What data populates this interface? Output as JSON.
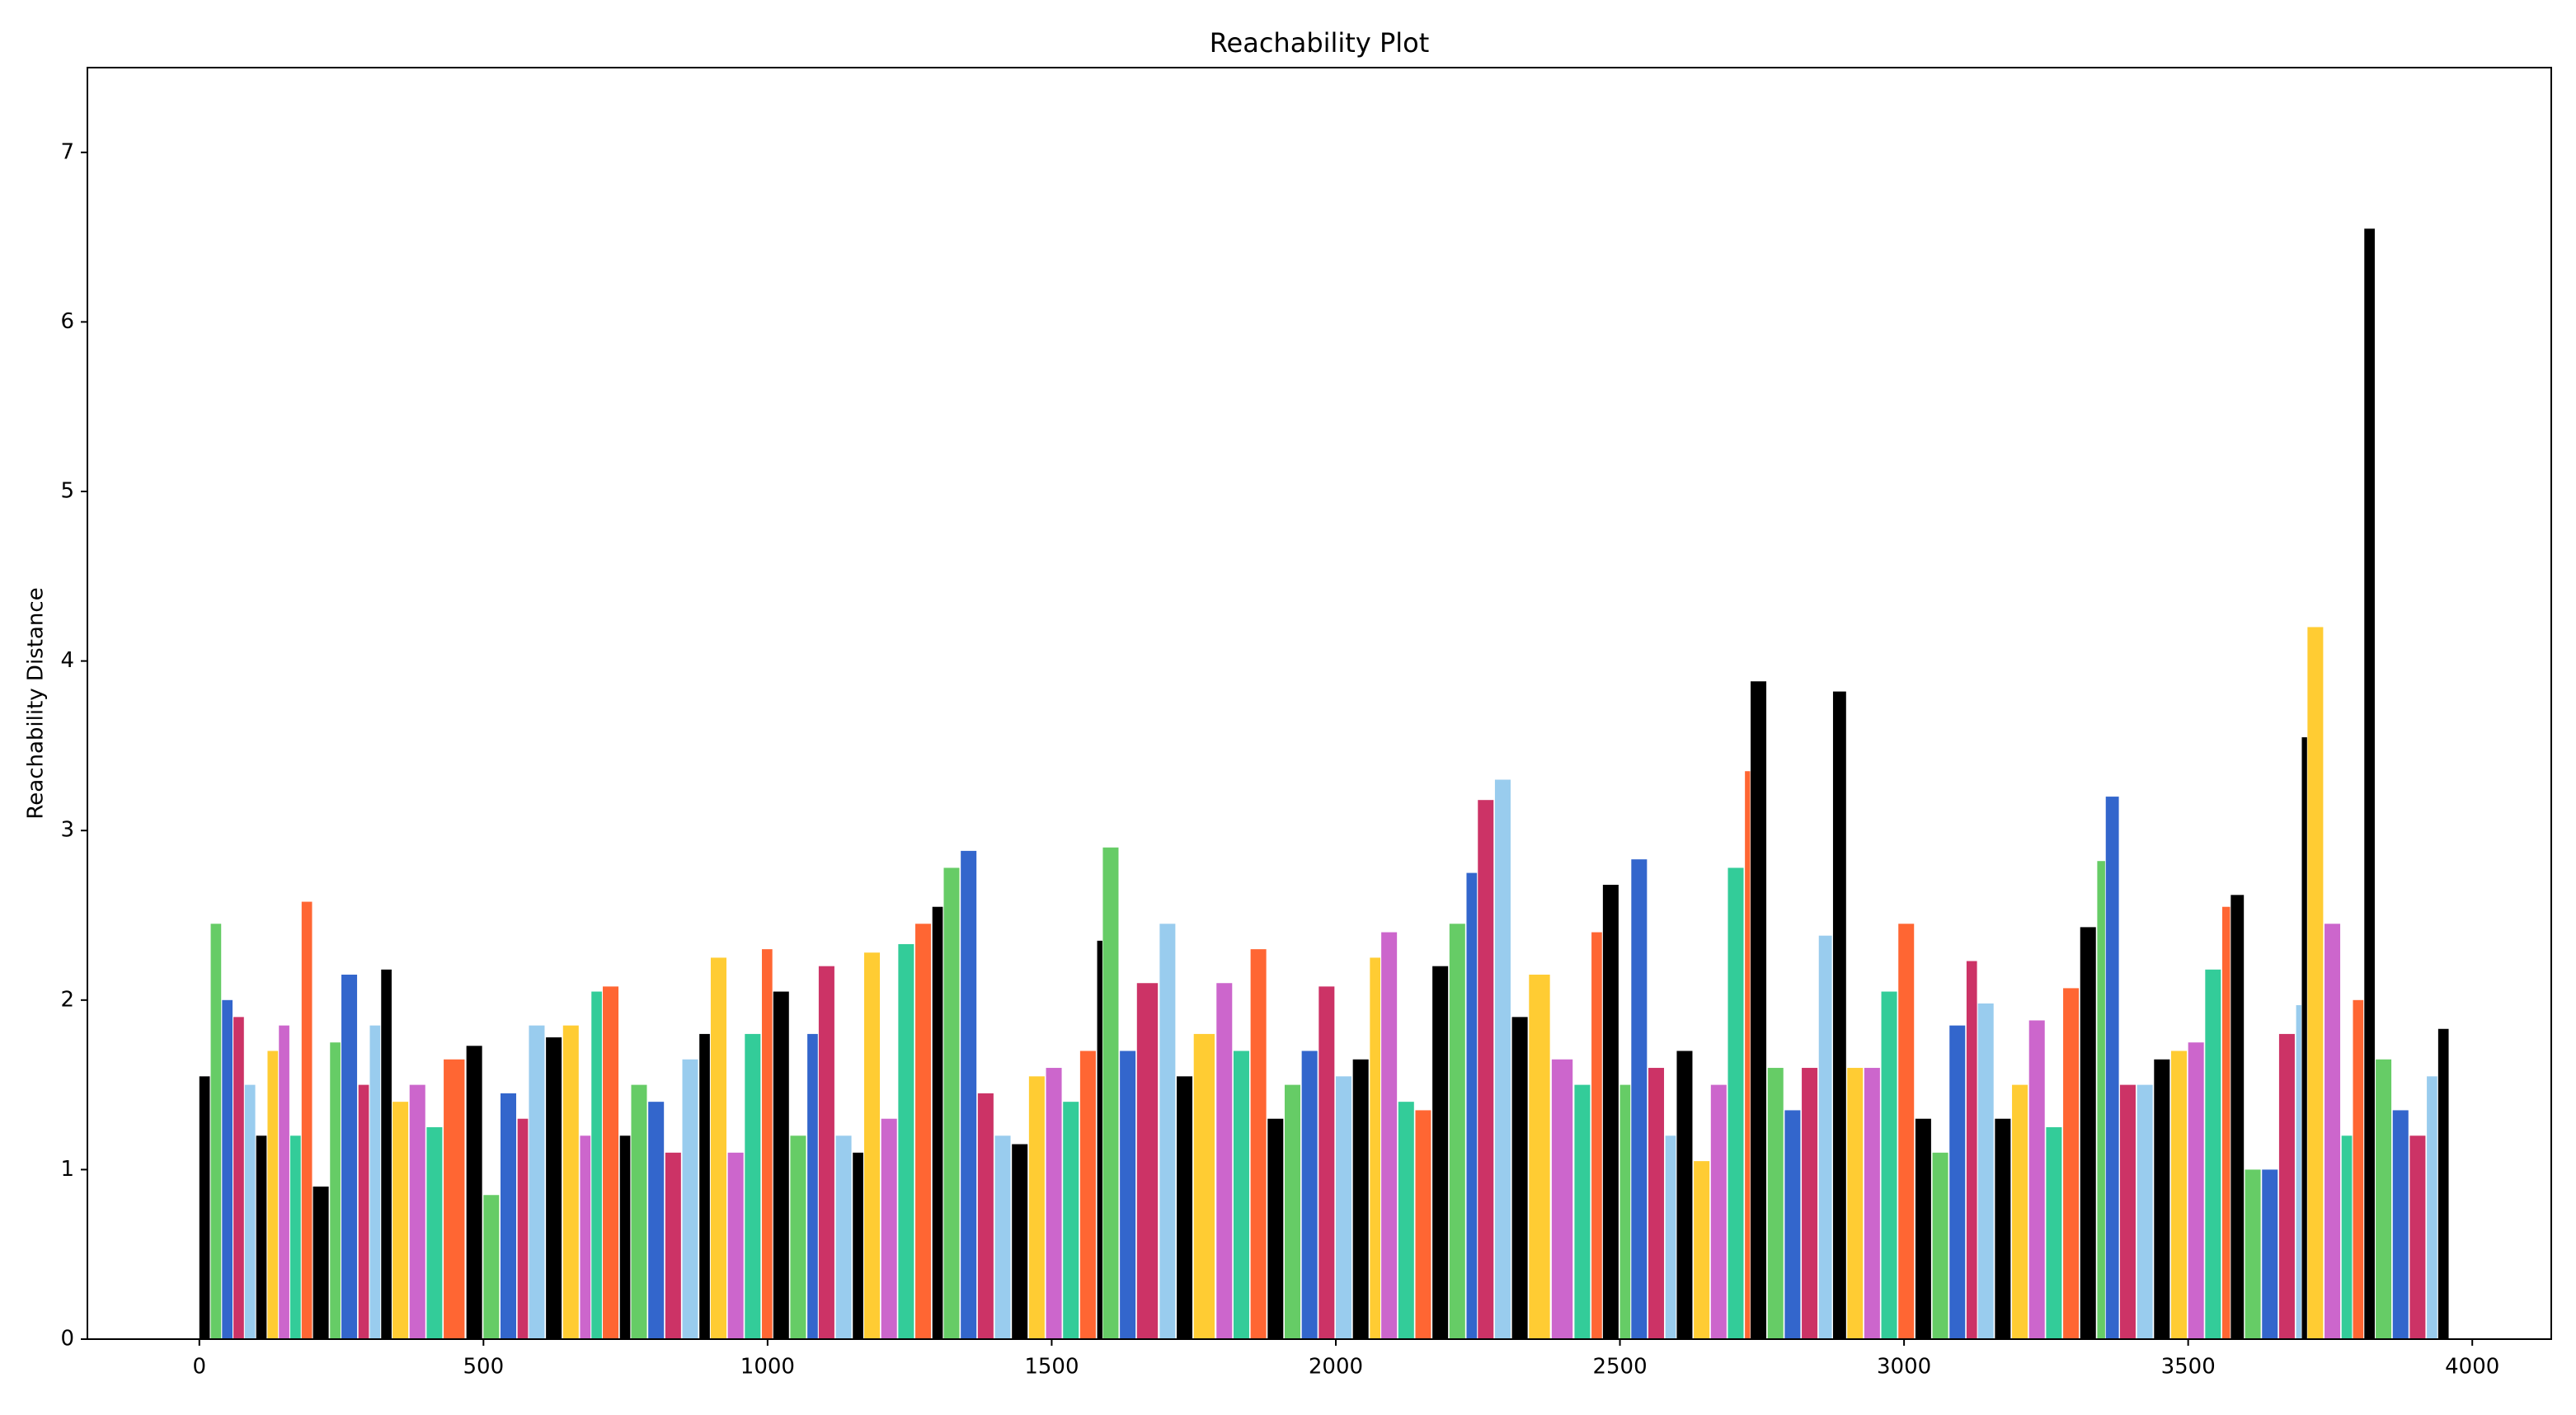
{
  "chart_data": {
    "type": "bar",
    "title": "Reachability Plot",
    "y_label": "Reachability Distance",
    "x": [
      0,
      20,
      40,
      60,
      80,
      100,
      120,
      140,
      160,
      180,
      200,
      230,
      250,
      280,
      300,
      320,
      340,
      370,
      400,
      430,
      470,
      500,
      530,
      560,
      580,
      610,
      640,
      670,
      690,
      710,
      740,
      760,
      790,
      820,
      850,
      880,
      900,
      930,
      960,
      990,
      1010,
      1040,
      1070,
      1090,
      1120,
      1150,
      1170,
      1200,
      1230,
      1260,
      1290,
      1310,
      1340,
      1370,
      1400,
      1430,
      1460,
      1490,
      1520,
      1550,
      1580,
      1590,
      1620,
      1650,
      1690,
      1720,
      1750,
      1790,
      1820,
      1850,
      1880,
      1910,
      1940,
      1970,
      2000,
      2030,
      2060,
      2080,
      2110,
      2140,
      2170,
      2200,
      2230,
      2250,
      2280,
      2310,
      2340,
      2380,
      2420,
      2450,
      2470,
      2500,
      2520,
      2550,
      2580,
      2600,
      2630,
      2660,
      2690,
      2720,
      2730,
      2760,
      2790,
      2820,
      2850,
      2875,
      2900,
      2930,
      2960,
      2990,
      3020,
      3050,
      3080,
      3110,
      3130,
      3160,
      3190,
      3220,
      3250,
      3280,
      3310,
      3340,
      3355,
      3380,
      3410,
      3440,
      3470,
      3500,
      3530,
      3560,
      3575,
      3600,
      3630,
      3660,
      3690,
      3700,
      3710,
      3740,
      3770,
      3790,
      3810,
      3830,
      3860,
      3890,
      3920,
      3940
    ],
    "values": [
      1.55,
      2.45,
      2.0,
      1.9,
      1.5,
      1.2,
      1.7,
      1.85,
      1.2,
      2.58,
      0.9,
      1.75,
      2.15,
      1.5,
      1.85,
      2.18,
      1.4,
      1.5,
      1.25,
      1.65,
      1.73,
      0.85,
      1.45,
      1.3,
      1.85,
      1.78,
      1.85,
      1.2,
      2.05,
      2.08,
      1.2,
      1.5,
      1.4,
      1.1,
      1.65,
      1.8,
      2.25,
      1.1,
      1.8,
      2.3,
      2.05,
      1.2,
      1.8,
      2.2,
      1.2,
      1.1,
      2.28,
      1.3,
      2.33,
      2.45,
      2.55,
      2.78,
      2.88,
      1.45,
      1.2,
      1.15,
      1.55,
      1.6,
      1.4,
      1.7,
      2.35,
      2.9,
      1.7,
      2.1,
      2.45,
      1.55,
      1.8,
      2.1,
      1.7,
      2.3,
      1.3,
      1.5,
      1.7,
      2.08,
      1.55,
      1.65,
      2.25,
      2.4,
      1.4,
      1.35,
      2.2,
      2.45,
      2.75,
      3.18,
      3.3,
      1.9,
      2.15,
      1.65,
      1.5,
      2.4,
      2.68,
      1.5,
      2.83,
      1.6,
      1.2,
      1.7,
      1.05,
      1.5,
      2.78,
      3.35,
      3.88,
      1.6,
      1.35,
      1.6,
      2.38,
      3.82,
      1.6,
      1.6,
      2.05,
      2.45,
      1.3,
      1.1,
      1.85,
      2.23,
      1.98,
      1.3,
      1.5,
      1.88,
      1.25,
      2.07,
      2.43,
      2.82,
      3.2,
      1.5,
      1.5,
      1.65,
      1.7,
      1.75,
      2.18,
      2.55,
      2.62,
      1.0,
      1.0,
      1.8,
      1.97,
      3.55,
      4.2,
      2.45,
      1.2,
      2.0,
      6.55,
      1.65,
      1.35,
      1.2,
      1.55,
      1.83
    ],
    "palette": [
      "#000000",
      "#66cc66",
      "#3366cc",
      "#cc3366",
      "#99ccee",
      "#000000",
      "#ffcc33",
      "#cc66cc",
      "#33cc99",
      "#ff6633"
    ],
    "xlim": [
      -197,
      4139
    ],
    "xticks": [
      0,
      500,
      1000,
      1500,
      2000,
      2500,
      3000,
      3500,
      4000
    ],
    "ylim": [
      0,
      7.5
    ],
    "yticks": [
      0,
      1,
      2,
      3,
      4,
      5,
      6,
      7
    ],
    "grid": false
  }
}
